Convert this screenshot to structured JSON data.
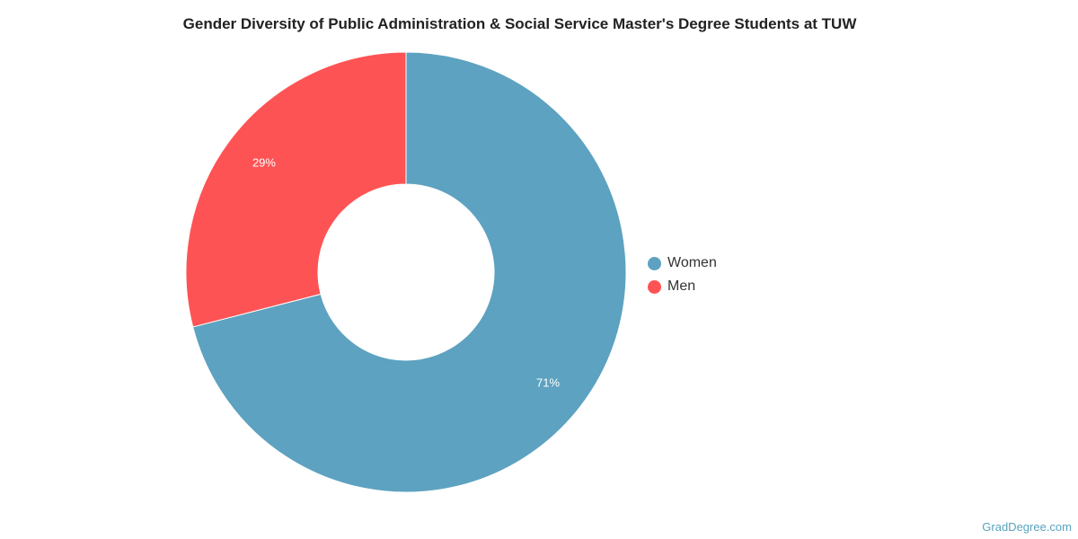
{
  "chart_data": {
    "type": "pie",
    "donut": true,
    "title": "Gender Diversity of Public Administration & Social Service Master's Degree Students at TUW",
    "categories": [
      "Women",
      "Men"
    ],
    "values": [
      71,
      29
    ],
    "data_labels": [
      "71%",
      "29%"
    ],
    "colors": [
      "#5da2c0",
      "#fe5354"
    ],
    "legend_position": "right"
  },
  "watermark": "GradDegree.com"
}
